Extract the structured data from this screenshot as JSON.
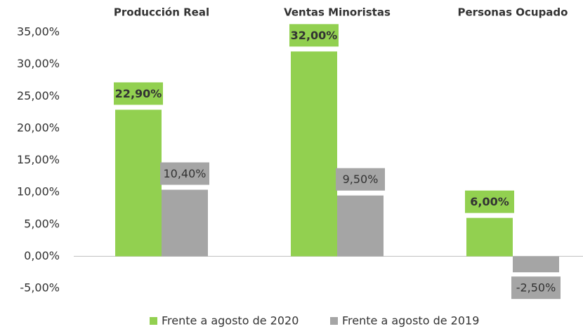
{
  "chart_data": {
    "type": "bar",
    "categories": [
      "Producción Real",
      "Ventas Minoristas",
      "Personas Ocupado"
    ],
    "series": [
      {
        "name": "Frente a agosto de 2020",
        "color": "#92d050",
        "values": [
          22.9,
          32,
          6
        ],
        "value_labels": [
          "22,90%",
          "32,00%",
          "6,00%"
        ]
      },
      {
        "name": "Frente a agosto de 2019",
        "color": "#a5a5a5",
        "values": [
          10.4,
          9.5,
          -2.5
        ],
        "value_labels": [
          "10,40%",
          "9,50%",
          "-2,50%"
        ]
      }
    ],
    "ylim": [
      -5,
      35
    ],
    "yticks": [
      {
        "value": -5,
        "label": "-5,00%"
      },
      {
        "value": 0,
        "label": "0,00%"
      },
      {
        "value": 5,
        "label": "5,00%"
      },
      {
        "value": 10,
        "label": "10,00%"
      },
      {
        "value": 15,
        "label": "15,00%"
      },
      {
        "value": 20,
        "label": "20,00%"
      },
      {
        "value": 25,
        "label": "25,00%"
      },
      {
        "value": 30,
        "label": "30,00%"
      },
      {
        "value": 35,
        "label": "35,00%"
      }
    ],
    "grid": false
  }
}
